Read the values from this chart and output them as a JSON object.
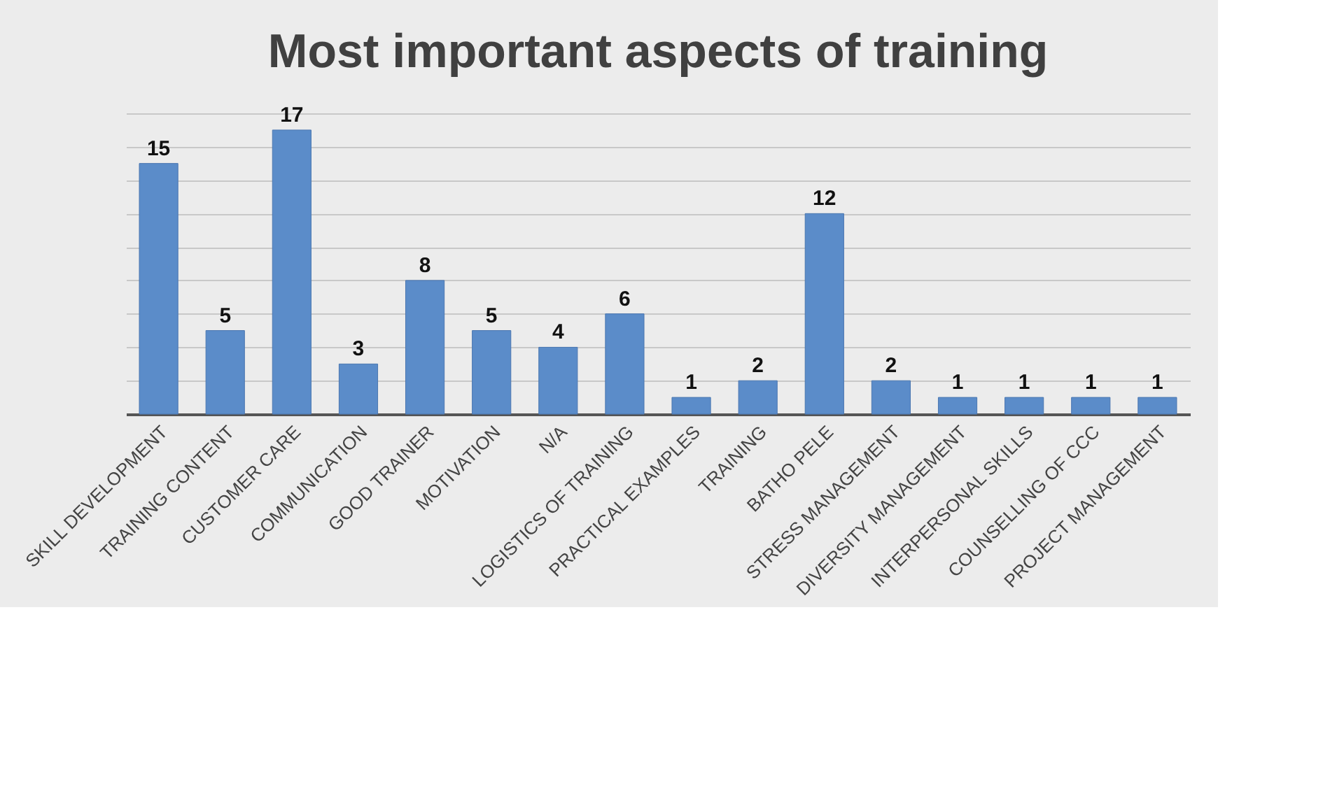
{
  "chart_data": {
    "type": "bar",
    "title": "Most important aspects of training",
    "categories": [
      "SKILL DEVELOPMENT",
      "TRAINING CONTENT",
      "CUSTOMER CARE",
      "COMMUNICATION",
      "GOOD TRAINER",
      "MOTIVATION",
      "N/A",
      "LOGISTICS OF TRAINING",
      "PRACTICAL EXAMPLES",
      "TRAINING",
      "BATHO PELE",
      "STRESS MANAGEMENT",
      "DIVERSITY MANAGEMENT",
      "INTERPERSONAL SKILLS",
      "COUNSELLING OF CCC",
      "PROJECT MANAGEMENT"
    ],
    "values": [
      15,
      5,
      17,
      3,
      8,
      5,
      4,
      6,
      1,
      2,
      12,
      2,
      1,
      1,
      1,
      1
    ],
    "color": "#5b8cc9",
    "grid": "y",
    "tick_labels": "x",
    "data_labels": true
  }
}
